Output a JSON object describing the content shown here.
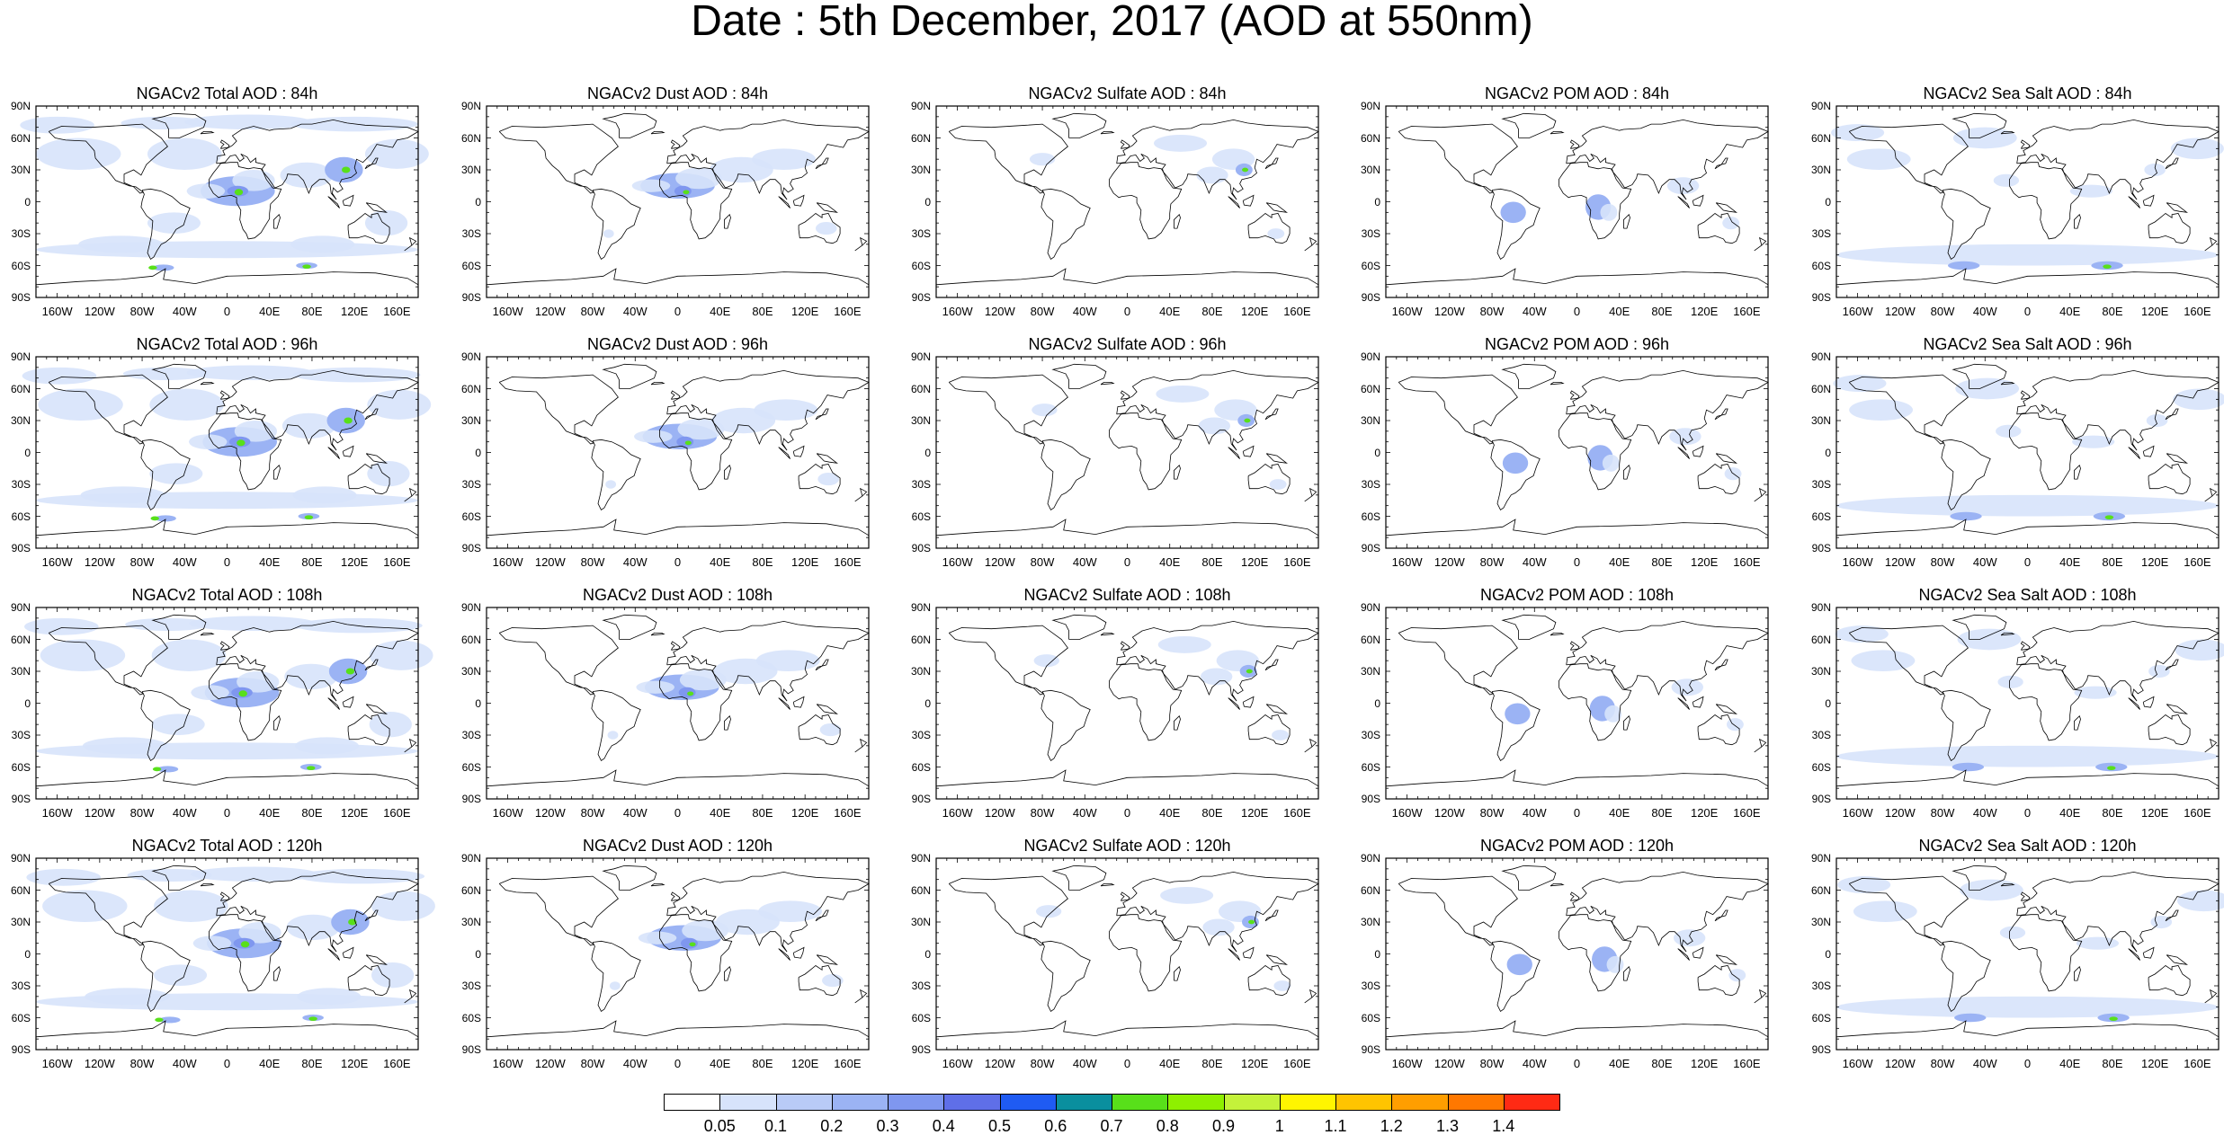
{
  "title": "Date : 5th December, 2017 (AOD at 550nm)",
  "panel_titles": [
    [
      "NGACv2 Total AOD : 84h",
      "NGACv2 Dust AOD : 84h",
      "NGACv2 Sulfate AOD : 84h",
      "NGACv2 POM AOD : 84h",
      "NGACv2 Sea Salt AOD : 84h"
    ],
    [
      "NGACv2 Total AOD : 96h",
      "NGACv2 Dust AOD : 96h",
      "NGACv2 Sulfate AOD : 96h",
      "NGACv2 POM AOD : 96h",
      "NGACv2 Sea Salt AOD : 96h"
    ],
    [
      "NGACv2 Total AOD : 108h",
      "NGACv2 Dust AOD : 108h",
      "NGACv2 Sulfate AOD : 108h",
      "NGACv2 POM AOD : 108h",
      "NGACv2 Sea Salt AOD : 108h"
    ],
    [
      "NGACv2 Total AOD : 120h",
      "NGACv2 Dust AOD : 120h",
      "NGACv2 Sulfate AOD : 120h",
      "NGACv2 POM AOD : 120h",
      "NGACv2 Sea Salt  AOD : 120h"
    ]
  ],
  "lat_ticks": [
    "90N",
    "60N",
    "30N",
    "0",
    "30S",
    "60S",
    "90S"
  ],
  "lon_ticks": [
    "160W",
    "120W",
    "80W",
    "40W",
    "0",
    "40E",
    "80E",
    "120E",
    "160E"
  ],
  "colorbar": {
    "labels": [
      "0.05",
      "0.1",
      "0.2",
      "0.3",
      "0.4",
      "0.5",
      "0.6",
      "0.7",
      "0.8",
      "0.9",
      "1",
      "1.1",
      "1.2",
      "1.3",
      "1.4"
    ],
    "colors": [
      "#ffffff",
      "#d7e3fb",
      "#b9cbf7",
      "#9bb3f4",
      "#7f97ef",
      "#5f6fe8",
      "#1f5bf3",
      "#0a8f9e",
      "#58e01a",
      "#8ef000",
      "#c4f23a",
      "#fff500",
      "#ffc400",
      "#ff9e00",
      "#ff7800",
      "#ff2a14"
    ]
  },
  "colors": {
    "low": "#d7e3fb",
    "mid": "#9bb3f4",
    "high": "#7f97ef",
    "peak": "#58e01a",
    "extreme": "#fff500"
  }
}
